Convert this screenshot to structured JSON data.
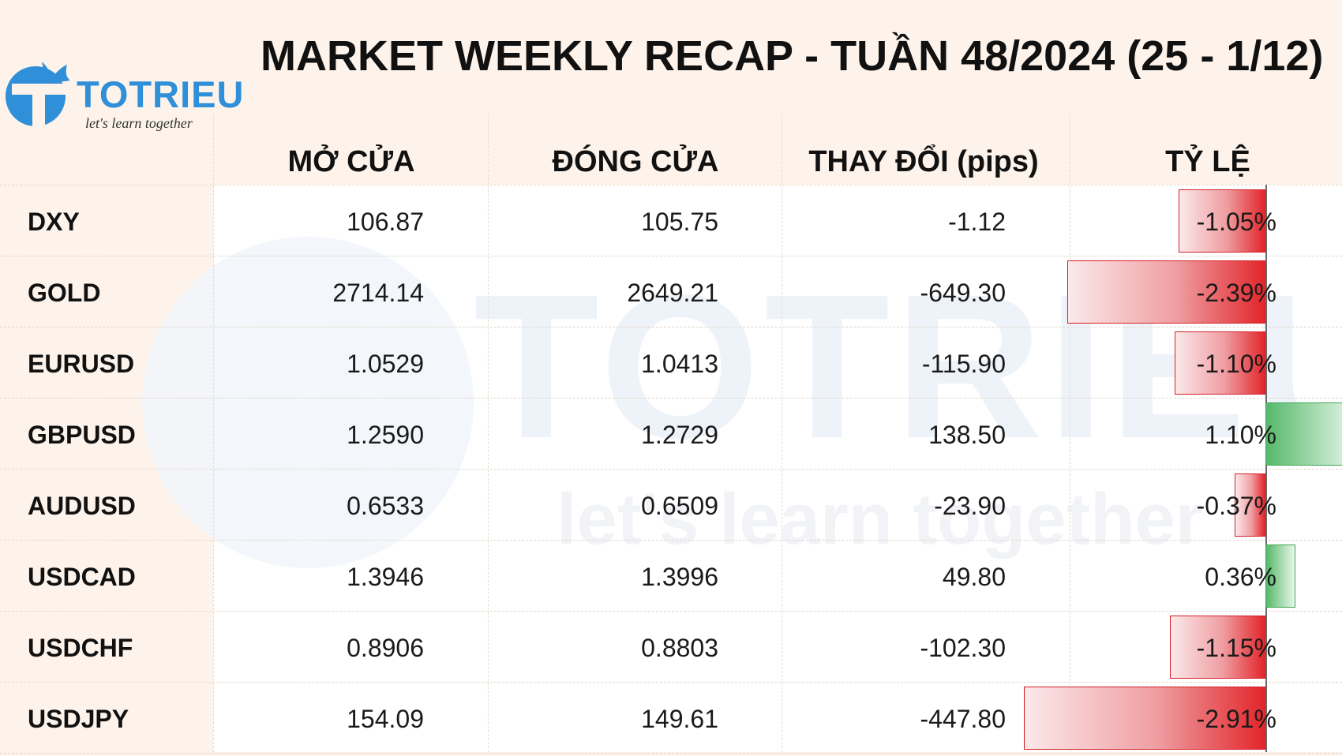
{
  "brand": {
    "name": "TOTRIEU",
    "tagline": "let's learn together",
    "logo_color": "#2f8fd8"
  },
  "chart_data": {
    "type": "table",
    "title": "MARKET WEEKLY RECAP - TUẦN 48/2024 (25 - 1/12)",
    "columns": [
      "MỞ CỬA",
      "ĐÓNG CỬA",
      "THAY ĐỔI (pips)",
      "TỶ LỆ"
    ],
    "rows": [
      {
        "symbol": "DXY",
        "open": "106.87",
        "close": "105.75",
        "change": "-1.12",
        "pct_label": "-1.05%",
        "pct": -1.05
      },
      {
        "symbol": "GOLD",
        "open": "2714.14",
        "close": "2649.21",
        "change": "-649.30",
        "pct_label": "-2.39%",
        "pct": -2.39
      },
      {
        "symbol": "EURUSD",
        "open": "1.0529",
        "close": "1.0413",
        "change": "-115.90",
        "pct_label": "-1.10%",
        "pct": -1.1
      },
      {
        "symbol": "GBPUSD",
        "open": "1.2590",
        "close": "1.2729",
        "change": "138.50",
        "pct_label": "1.10%",
        "pct": 1.1
      },
      {
        "symbol": "AUDUSD",
        "open": "0.6533",
        "close": "0.6509",
        "change": "-23.90",
        "pct_label": "-0.37%",
        "pct": -0.37
      },
      {
        "symbol": "USDCAD",
        "open": "1.3946",
        "close": "1.3996",
        "change": "49.80",
        "pct_label": "0.36%",
        "pct": 0.36
      },
      {
        "symbol": "USDCHF",
        "open": "0.8906",
        "close": "0.8803",
        "change": "-102.30",
        "pct_label": "-1.15%",
        "pct": -1.15
      },
      {
        "symbol": "USDJPY",
        "open": "154.09",
        "close": "149.61",
        "change": "-447.80",
        "pct_label": "-2.91%",
        "pct": -2.91
      }
    ],
    "colors": {
      "negative": "#e2262b",
      "positive": "#3fa553",
      "panel": "#fdf3ea"
    }
  }
}
